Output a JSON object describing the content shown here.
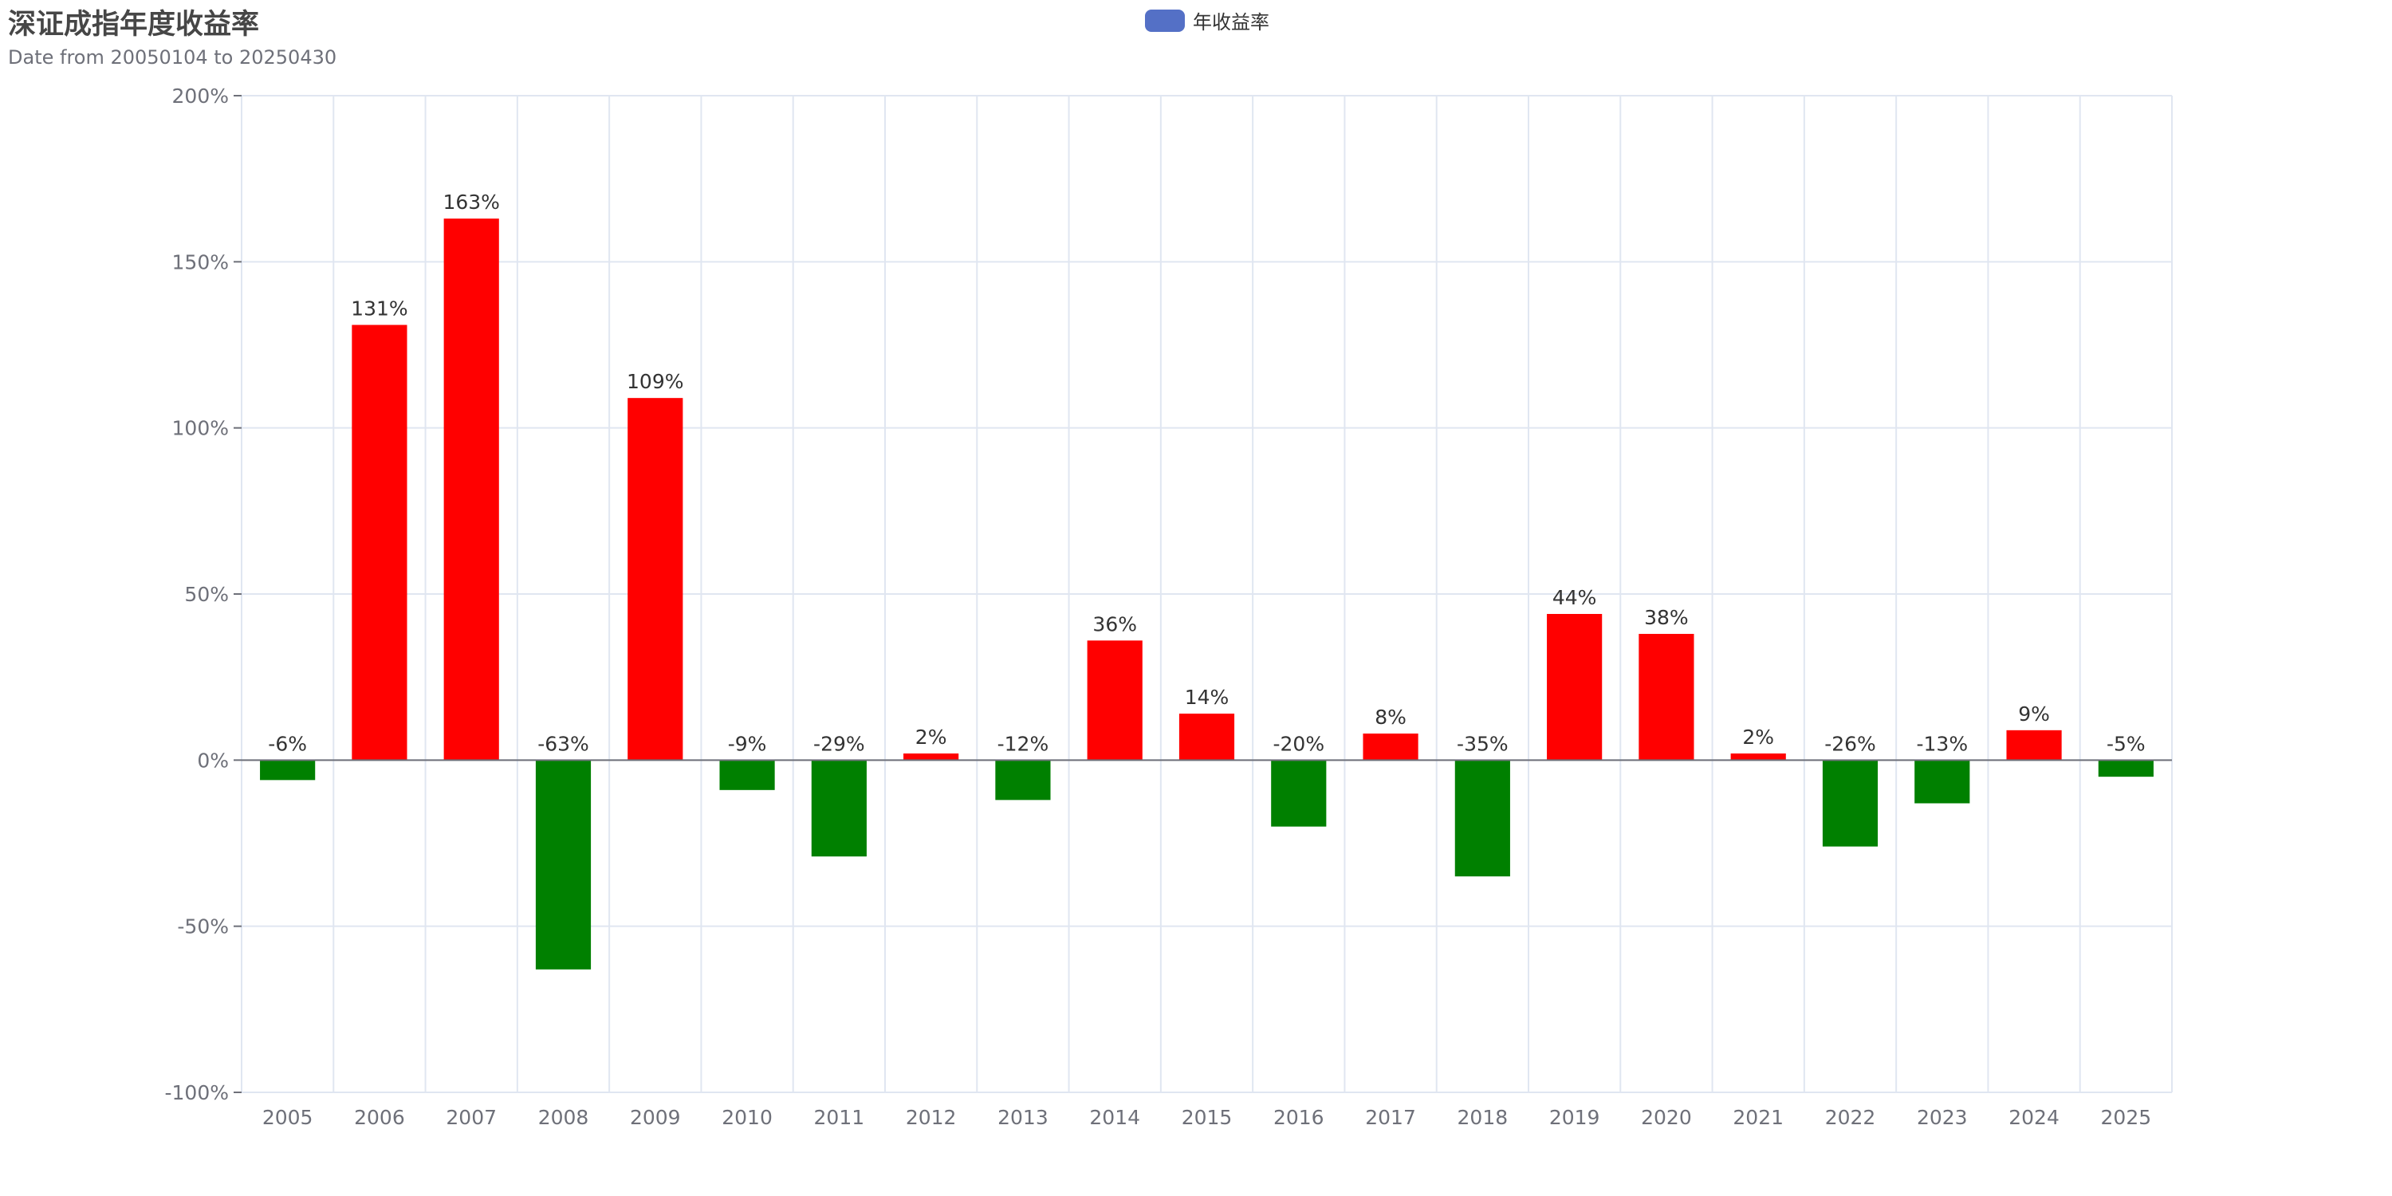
{
  "title": "深证成指年度收益率",
  "subtitle": "Date from 20050104 to 20250430",
  "legend": {
    "label": "年收益率",
    "color": "#5470c6"
  },
  "colors": {
    "positive": "#ff0000",
    "negative": "#008000",
    "grid": "#e0e6f1",
    "axis": "#6e7079"
  },
  "chart_data": {
    "type": "bar",
    "categories": [
      "2005",
      "2006",
      "2007",
      "2008",
      "2009",
      "2010",
      "2011",
      "2012",
      "2013",
      "2014",
      "2015",
      "2016",
      "2017",
      "2018",
      "2019",
      "2020",
      "2021",
      "2022",
      "2023",
      "2024",
      "2025"
    ],
    "series": [
      {
        "name": "年收益率",
        "values": [
          -6,
          131,
          163,
          -63,
          109,
          -9,
          -29,
          2,
          -12,
          36,
          14,
          -20,
          8,
          -35,
          44,
          38,
          2,
          -26,
          -13,
          9,
          -5
        ],
        "labels": [
          "-6%",
          "131%",
          "163%",
          "-63%",
          "109%",
          "-9%",
          "-29%",
          "2%",
          "-12%",
          "36%",
          "14%",
          "-20%",
          "8%",
          "-35%",
          "44%",
          "38%",
          "2%",
          "-26%",
          "-13%",
          "9%",
          "-5%"
        ]
      }
    ],
    "ylim": [
      -100,
      200
    ],
    "yticks": [
      -100,
      -50,
      0,
      50,
      100,
      150,
      200
    ],
    "ytick_labels": [
      "-100%",
      "-50%",
      "0%",
      "50%",
      "100%",
      "150%",
      "200%"
    ],
    "grid": true,
    "legend_position": "top-center",
    "xlabel": "",
    "ylabel": ""
  }
}
